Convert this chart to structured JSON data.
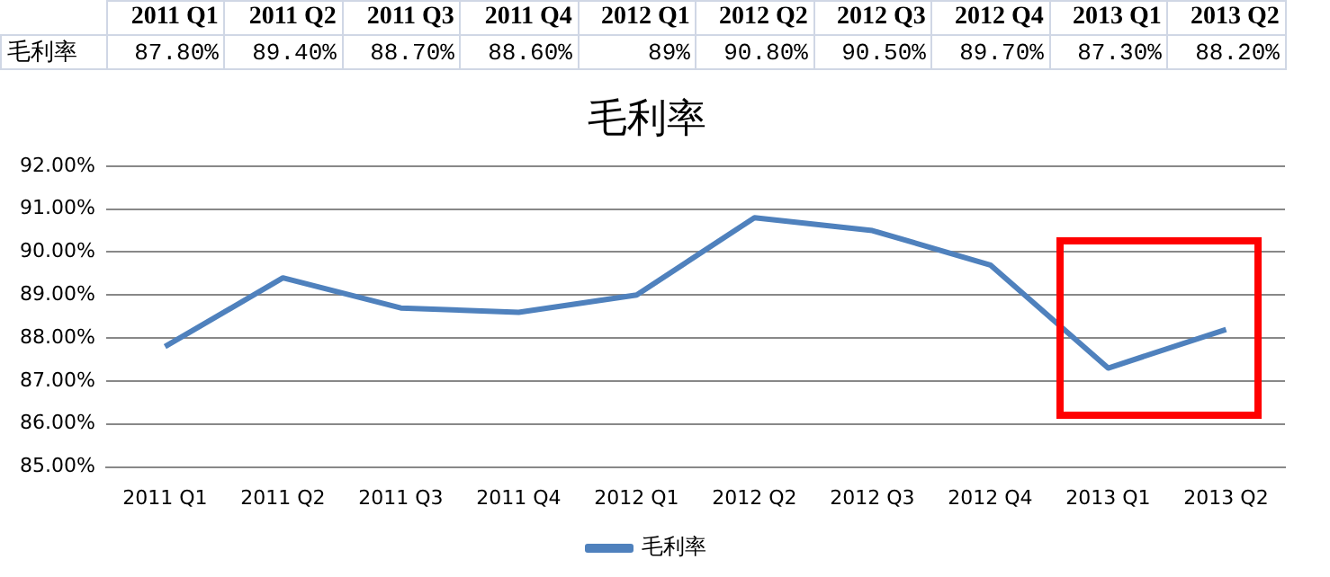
{
  "chart_data": {
    "type": "line",
    "title": "毛利率",
    "categories": [
      "2011 Q1",
      "2011 Q2",
      "2011 Q3",
      "2011 Q4",
      "2012 Q1",
      "2012 Q2",
      "2012 Q3",
      "2012 Q4",
      "2013 Q1",
      "2013 Q2"
    ],
    "series": [
      {
        "name": "毛利率",
        "color": "#4f81bd",
        "values": [
          87.8,
          89.4,
          88.7,
          88.6,
          89,
          90.8,
          90.5,
          89.7,
          87.3,
          88.2
        ],
        "value_labels": [
          "87.80%",
          "89.40%",
          "88.70%",
          "88.60%",
          "89%",
          "90.80%",
          "90.50%",
          "89.70%",
          "87.30%",
          "88.20%"
        ]
      }
    ],
    "ylim": [
      85,
      92
    ],
    "yticks": [
      {
        "value": 85,
        "label": "85.00%"
      },
      {
        "value": 86,
        "label": "86.00%"
      },
      {
        "value": 87,
        "label": "87.00%"
      },
      {
        "value": 88,
        "label": "88.00%"
      },
      {
        "value": 89,
        "label": "89.00%"
      },
      {
        "value": 90,
        "label": "90.00%"
      },
      {
        "value": 91,
        "label": "91.00%"
      },
      {
        "value": 92,
        "label": "92.00%"
      }
    ],
    "grid": "y",
    "legend": "bottom",
    "marker": "none",
    "line_style": "solid"
  }
}
